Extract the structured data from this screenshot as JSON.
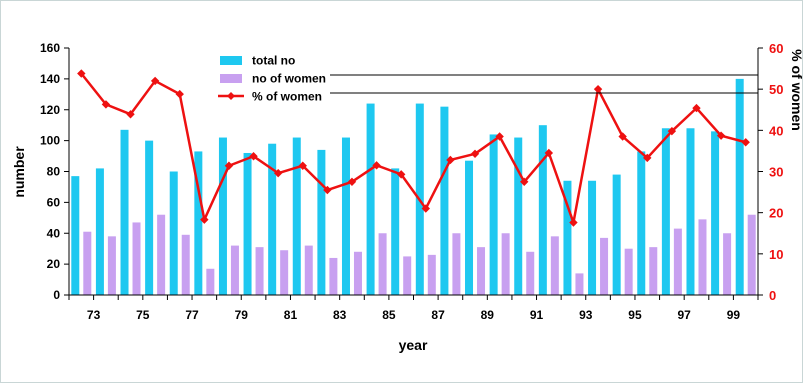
{
  "chart_data": {
    "type": "bar",
    "xlabel": "year",
    "ylabel": "number",
    "y2label": "% of women",
    "ylim": [
      0,
      160
    ],
    "y2lim": [
      0,
      60
    ],
    "yticks": [
      "0",
      "20",
      "40",
      "60",
      "80",
      "100",
      "120",
      "140",
      "160"
    ],
    "y2ticks": [
      "0",
      "10",
      "20",
      "30",
      "40",
      "50",
      "60"
    ],
    "categories": [
      "73",
      "74",
      "75",
      "76",
      "77",
      "78",
      "79",
      "80",
      "81",
      "82",
      "83",
      "84",
      "85",
      "86",
      "87",
      "88",
      "89",
      "90",
      "91",
      "92",
      "93",
      "94",
      "95",
      "96",
      "97",
      "98",
      "99",
      "100"
    ],
    "x_tick_labels": [
      "73",
      "",
      "75",
      "",
      "77",
      "",
      "79",
      "",
      "81",
      "",
      "83",
      "",
      "85",
      "",
      "87",
      "",
      "89",
      "",
      "91",
      "",
      "93",
      "",
      "95",
      "",
      "97",
      "",
      "99",
      ""
    ],
    "series": [
      {
        "name": "total no",
        "axis": "left",
        "kind": "bar",
        "color": "#1ec8f0",
        "values": [
          77,
          82,
          107,
          100,
          80,
          93,
          102,
          92,
          98,
          102,
          94,
          102,
          124,
          82,
          124,
          122,
          87,
          104,
          102,
          110,
          74,
          74,
          78,
          93,
          108,
          108,
          106,
          140
        ]
      },
      {
        "name": "no of women",
        "axis": "left",
        "kind": "bar",
        "color": "#c8a0f0",
        "values": [
          41,
          38,
          47,
          52,
          39,
          17,
          32,
          31,
          29,
          32,
          24,
          28,
          40,
          25,
          26,
          40,
          31,
          40,
          28,
          38,
          14,
          37,
          30,
          31,
          43,
          49,
          40,
          52
        ]
      },
      {
        "name": "% of women",
        "axis": "right",
        "kind": "line",
        "color": "#ee1111",
        "values": [
          53.8,
          46.3,
          43.9,
          52.0,
          48.8,
          18.3,
          31.4,
          33.7,
          29.6,
          31.4,
          25.5,
          27.5,
          31.5,
          29.3,
          21.0,
          32.8,
          34.3,
          38.5,
          27.5,
          34.5,
          17.6,
          50.0,
          38.5,
          33.3,
          39.8,
          45.4,
          38.7,
          37.1
        ]
      }
    ],
    "legend": {
      "placement": "top-center",
      "entries": [
        "total no",
        "no of women",
        "% of women"
      ]
    },
    "grid": false,
    "colors": {
      "left_axis": "#000000",
      "right_axis": "#ee1111",
      "background": "#ffffff",
      "outer_background": "#f0f5f5"
    }
  }
}
